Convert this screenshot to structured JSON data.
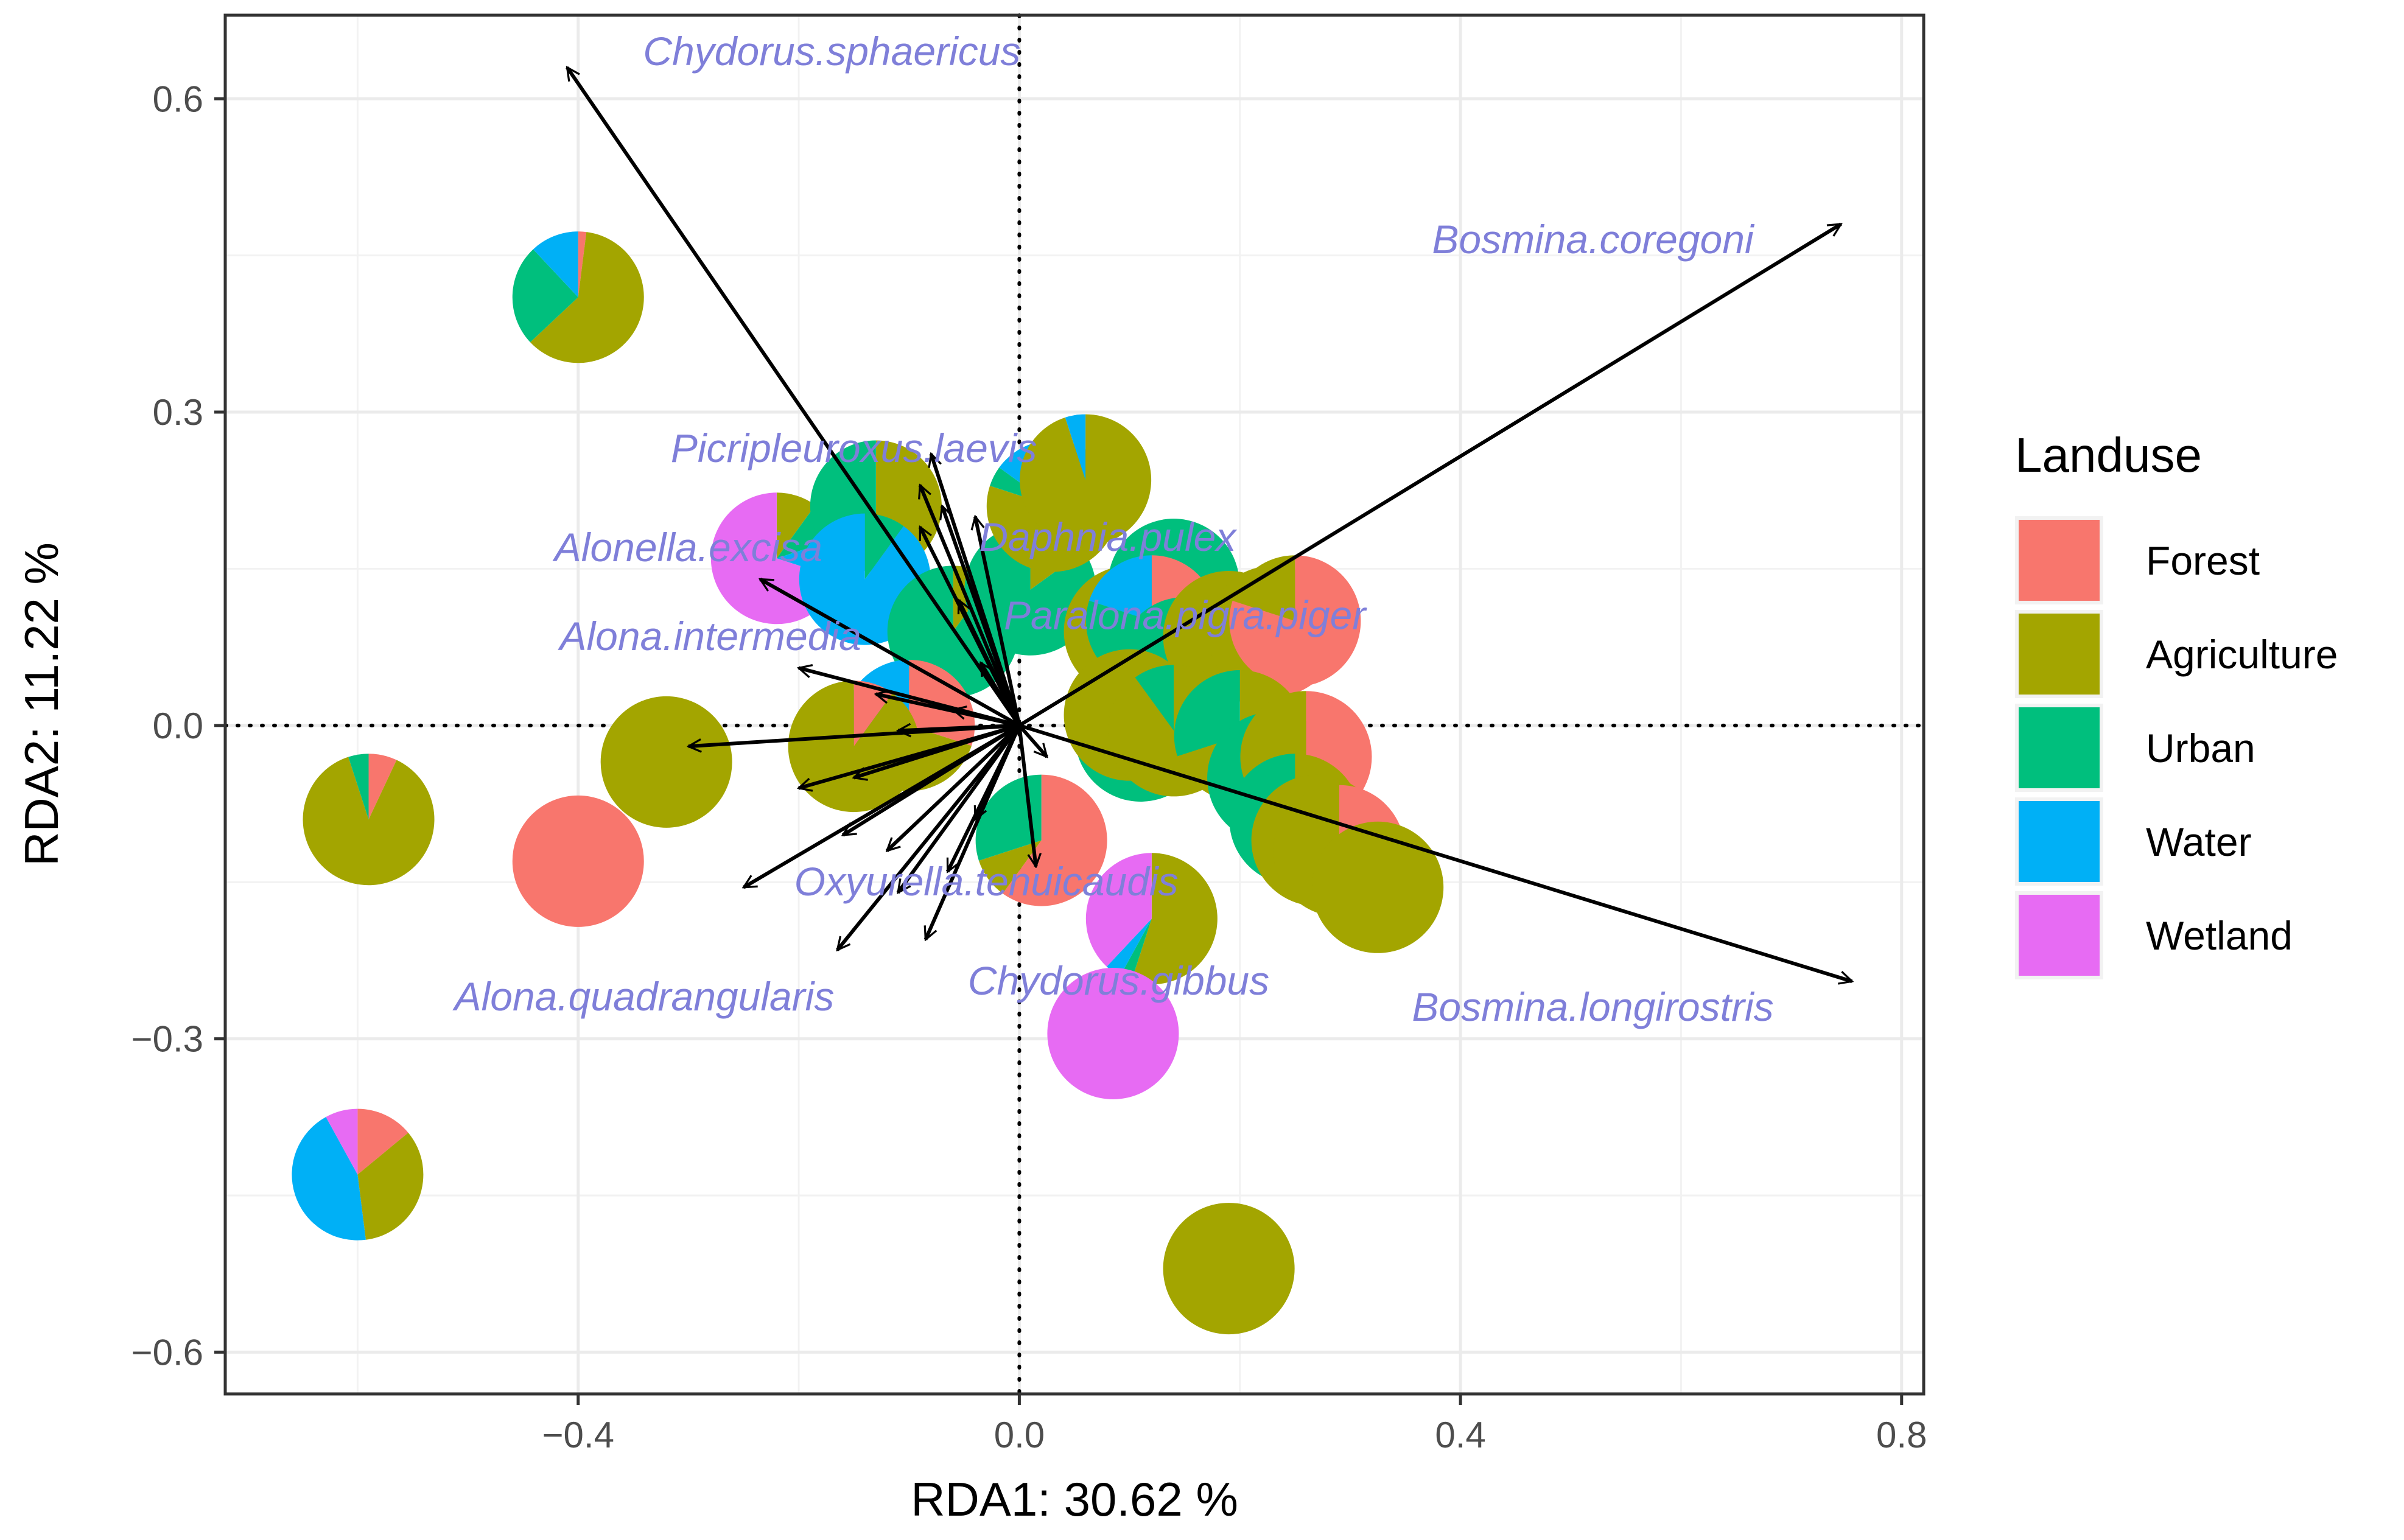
{
  "chart_data": {
    "type": "scatter",
    "subtype": "RDA triplot with pie-chart sites and species arrows",
    "xlabel": "RDA1: 30.62 %",
    "ylabel": "RDA2: 11.22 %",
    "xlim": [
      -0.72,
      0.82
    ],
    "ylim": [
      -0.64,
      0.68
    ],
    "xticks": [
      -0.4,
      0.0,
      0.4,
      0.8
    ],
    "xtick_labels": [
      "-0.4",
      "0.0",
      "0.4",
      "0.8"
    ],
    "yticks": [
      -0.6,
      -0.3,
      0.0,
      0.3,
      0.6
    ],
    "ytick_labels": [
      "-0.6",
      "-0.3",
      "0.0",
      "0.3",
      "0.6"
    ],
    "grid": true,
    "reference_lines": "dotted lines at x = 0 and y = 0",
    "legend": {
      "title": "Landuse",
      "position": "right",
      "entries": [
        {
          "label": "Forest",
          "color": "#F8766D"
        },
        {
          "label": "Agriculture",
          "color": "#A3A500"
        },
        {
          "label": "Urban",
          "color": "#00BF7D"
        },
        {
          "label": "Water",
          "color": "#00B0F6"
        },
        {
          "label": "Wetland",
          "color": "#E76BF3"
        }
      ]
    },
    "species": [
      {
        "name": "Chydorus.sphaericus",
        "x": -0.41,
        "y": 0.63,
        "label_x": -0.17,
        "label_y": 0.645
      },
      {
        "name": "Bosmina.coregoni",
        "x": 0.745,
        "y": 0.48,
        "label_x": 0.52,
        "label_y": 0.465
      },
      {
        "name": "Bosmina.longirostris",
        "x": 0.755,
        "y": -0.245,
        "label_x": 0.52,
        "label_y": -0.27
      },
      {
        "name": "Picripleuroxus.laevis",
        "x": -0.08,
        "y": 0.26,
        "label_x": -0.15,
        "label_y": 0.265
      },
      {
        "name": "Daphnia.pulex",
        "x": -0.09,
        "y": 0.23,
        "label_x": 0.08,
        "label_y": 0.18
      },
      {
        "name": "Alonella.excisa",
        "x": -0.235,
        "y": 0.14,
        "label_x": -0.3,
        "label_y": 0.17
      },
      {
        "name": "Paralona.pigra.piger",
        "x": -0.04,
        "y": 0.2,
        "label_x": 0.15,
        "label_y": 0.105
      },
      {
        "name": "Alona.intermedia",
        "x": -0.2,
        "y": 0.055,
        "label_x": -0.28,
        "label_y": 0.085
      },
      {
        "name": "Oxyurella.tenuicaudis",
        "x": -0.25,
        "y": -0.155,
        "label_x": -0.03,
        "label_y": -0.15
      },
      {
        "name": "Alona.quadrangularis",
        "x": -0.165,
        "y": -0.215,
        "label_x": -0.34,
        "label_y": -0.26
      },
      {
        "name": "Chydorus.gibbus",
        "x": -0.085,
        "y": -0.205,
        "label_x": 0.09,
        "label_y": -0.245
      },
      {
        "name": "",
        "x": -0.3,
        "y": -0.02
      },
      {
        "name": "",
        "x": -0.2,
        "y": -0.06
      },
      {
        "name": "",
        "x": -0.13,
        "y": 0.03
      },
      {
        "name": "",
        "x": -0.15,
        "y": -0.05
      },
      {
        "name": "",
        "x": -0.16,
        "y": -0.105
      },
      {
        "name": "",
        "x": -0.12,
        "y": -0.12
      },
      {
        "name": "",
        "x": -0.11,
        "y": -0.16
      },
      {
        "name": "",
        "x": -0.065,
        "y": -0.14
      },
      {
        "name": "",
        "x": -0.04,
        "y": -0.09
      },
      {
        "name": "",
        "x": -0.11,
        "y": -0.005
      },
      {
        "name": "",
        "x": -0.06,
        "y": 0.015
      },
      {
        "name": "",
        "x": -0.055,
        "y": 0.12
      },
      {
        "name": "",
        "x": -0.09,
        "y": 0.19
      },
      {
        "name": "",
        "x": -0.07,
        "y": 0.21
      },
      {
        "name": "",
        "x": 0.015,
        "y": -0.135
      },
      {
        "name": "",
        "x": 0.025,
        "y": -0.03
      },
      {
        "name": "",
        "x": -0.035,
        "y": 0.06
      }
    ],
    "sites": [
      {
        "x": -0.4,
        "y": 0.41,
        "shares": {
          "Forest": 0.02,
          "Agriculture": 0.61,
          "Urban": 0.25,
          "Water": 0.12,
          "Wetland": 0
        }
      },
      {
        "x": -0.59,
        "y": -0.09,
        "shares": {
          "Forest": 0.07,
          "Agriculture": 0.88,
          "Urban": 0.05,
          "Water": 0,
          "Wetland": 0
        }
      },
      {
        "x": -0.6,
        "y": -0.43,
        "shares": {
          "Forest": 0.14,
          "Agriculture": 0.34,
          "Urban": 0,
          "Water": 0.44,
          "Wetland": 0.08
        }
      },
      {
        "x": -0.4,
        "y": -0.13,
        "shares": {
          "Forest": 1,
          "Agriculture": 0,
          "Urban": 0,
          "Water": 0,
          "Wetland": 0
        }
      },
      {
        "x": -0.32,
        "y": -0.035,
        "shares": {
          "Forest": 0,
          "Agriculture": 1,
          "Urban": 0,
          "Water": 0,
          "Wetland": 0
        }
      },
      {
        "x": -0.22,
        "y": 0.16,
        "shares": {
          "Forest": 0,
          "Agriculture": 0.1,
          "Urban": 0.1,
          "Water": 0.1,
          "Wetland": 0.7
        }
      },
      {
        "x": -0.13,
        "y": 0.21,
        "shares": {
          "Forest": 0,
          "Agriculture": 0.5,
          "Urban": 0.5,
          "Water": 0,
          "Wetland": 0
        }
      },
      {
        "x": -0.14,
        "y": 0.14,
        "shares": {
          "Forest": 0,
          "Agriculture": 0,
          "Urban": 0.1,
          "Water": 0.9,
          "Wetland": 0
        }
      },
      {
        "x": -0.06,
        "y": 0.09,
        "shares": {
          "Forest": 0,
          "Agriculture": 0.1,
          "Urban": 0.9,
          "Water": 0,
          "Wetland": 0
        }
      },
      {
        "x": 0.01,
        "y": 0.13,
        "shares": {
          "Forest": 0,
          "Agriculture": 0.15,
          "Urban": 0.85,
          "Water": 0,
          "Wetland": 0
        }
      },
      {
        "x": 0.03,
        "y": 0.21,
        "shares": {
          "Forest": 0,
          "Agriculture": 0.8,
          "Urban": 0.05,
          "Water": 0.1,
          "Wetland": 0.05
        }
      },
      {
        "x": 0.06,
        "y": 0.235,
        "shares": {
          "Forest": 0,
          "Agriculture": 0.95,
          "Urban": 0,
          "Water": 0.05,
          "Wetland": 0
        }
      },
      {
        "x": -0.1,
        "y": 0.0,
        "shares": {
          "Forest": 0.3,
          "Agriculture": 0.4,
          "Urban": 0.1,
          "Water": 0.2,
          "Wetland": 0
        }
      },
      {
        "x": -0.15,
        "y": -0.02,
        "shares": {
          "Forest": 0.1,
          "Agriculture": 0.9,
          "Urban": 0,
          "Water": 0,
          "Wetland": 0
        }
      },
      {
        "x": 0.02,
        "y": -0.11,
        "shares": {
          "Forest": 0.6,
          "Agriculture": 0.1,
          "Urban": 0.3,
          "Water": 0,
          "Wetland": 0
        }
      },
      {
        "x": 0.1,
        "y": 0.09,
        "shares": {
          "Forest": 0.2,
          "Agriculture": 0.8,
          "Urban": 0,
          "Water": 0,
          "Wetland": 0
        }
      },
      {
        "x": 0.14,
        "y": 0.135,
        "shares": {
          "Forest": 0,
          "Agriculture": 0,
          "Urban": 1,
          "Water": 0,
          "Wetland": 0
        }
      },
      {
        "x": 0.12,
        "y": 0.1,
        "shares": {
          "Forest": 0.2,
          "Agriculture": 0.2,
          "Urban": 0.4,
          "Water": 0.2,
          "Wetland": 0
        }
      },
      {
        "x": 0.15,
        "y": 0.06,
        "shares": {
          "Forest": 0,
          "Agriculture": 0.6,
          "Urban": 0.4,
          "Water": 0,
          "Wetland": 0
        }
      },
      {
        "x": 0.19,
        "y": 0.085,
        "shares": {
          "Forest": 0,
          "Agriculture": 1,
          "Urban": 0,
          "Water": 0,
          "Wetland": 0
        }
      },
      {
        "x": 0.23,
        "y": 0.09,
        "shares": {
          "Forest": 0.5,
          "Agriculture": 0.5,
          "Urban": 0,
          "Water": 0,
          "Wetland": 0
        }
      },
      {
        "x": 0.25,
        "y": 0.1,
        "shares": {
          "Forest": 0.8,
          "Agriculture": 0.2,
          "Urban": 0,
          "Water": 0,
          "Wetland": 0
        }
      },
      {
        "x": 0.11,
        "y": -0.01,
        "shares": {
          "Forest": 0,
          "Agriculture": 0.1,
          "Urban": 0.9,
          "Water": 0,
          "Wetland": 0
        }
      },
      {
        "x": 0.1,
        "y": 0.01,
        "shares": {
          "Forest": 0,
          "Agriculture": 1,
          "Urban": 0,
          "Water": 0,
          "Wetland": 0
        }
      },
      {
        "x": 0.14,
        "y": -0.005,
        "shares": {
          "Forest": 0,
          "Agriculture": 0.9,
          "Urban": 0.1,
          "Water": 0,
          "Wetland": 0
        }
      },
      {
        "x": 0.2,
        "y": -0.01,
        "shares": {
          "Forest": 0,
          "Agriculture": 0.7,
          "Urban": 0.3,
          "Water": 0,
          "Wetland": 0
        }
      },
      {
        "x": 0.23,
        "y": -0.05,
        "shares": {
          "Forest": 0,
          "Agriculture": 0,
          "Urban": 1,
          "Water": 0,
          "Wetland": 0
        }
      },
      {
        "x": 0.26,
        "y": -0.03,
        "shares": {
          "Forest": 0.4,
          "Agriculture": 0.6,
          "Urban": 0,
          "Water": 0,
          "Wetland": 0
        }
      },
      {
        "x": 0.25,
        "y": -0.09,
        "shares": {
          "Forest": 0,
          "Agriculture": 0.5,
          "Urban": 0.5,
          "Water": 0,
          "Wetland": 0
        }
      },
      {
        "x": 0.27,
        "y": -0.11,
        "shares": {
          "Forest": 0,
          "Agriculture": 1,
          "Urban": 0,
          "Water": 0,
          "Wetland": 0
        }
      },
      {
        "x": 0.29,
        "y": -0.12,
        "shares": {
          "Forest": 0.5,
          "Agriculture": 0.5,
          "Urban": 0,
          "Water": 0,
          "Wetland": 0
        }
      },
      {
        "x": 0.325,
        "y": -0.155,
        "shares": {
          "Forest": 0,
          "Agriculture": 1,
          "Urban": 0,
          "Water": 0,
          "Wetland": 0
        }
      },
      {
        "x": 0.12,
        "y": -0.185,
        "shares": {
          "Forest": 0,
          "Agriculture": 0.55,
          "Urban": 0.03,
          "Water": 0.04,
          "Wetland": 0.38
        }
      },
      {
        "x": 0.085,
        "y": -0.295,
        "shares": {
          "Forest": 0,
          "Agriculture": 0,
          "Urban": 0,
          "Water": 0,
          "Wetland": 1
        }
      },
      {
        "x": 0.19,
        "y": -0.52,
        "shares": {
          "Forest": 0,
          "Agriculture": 1,
          "Urban": 0,
          "Water": 0,
          "Wetland": 0
        }
      }
    ]
  }
}
